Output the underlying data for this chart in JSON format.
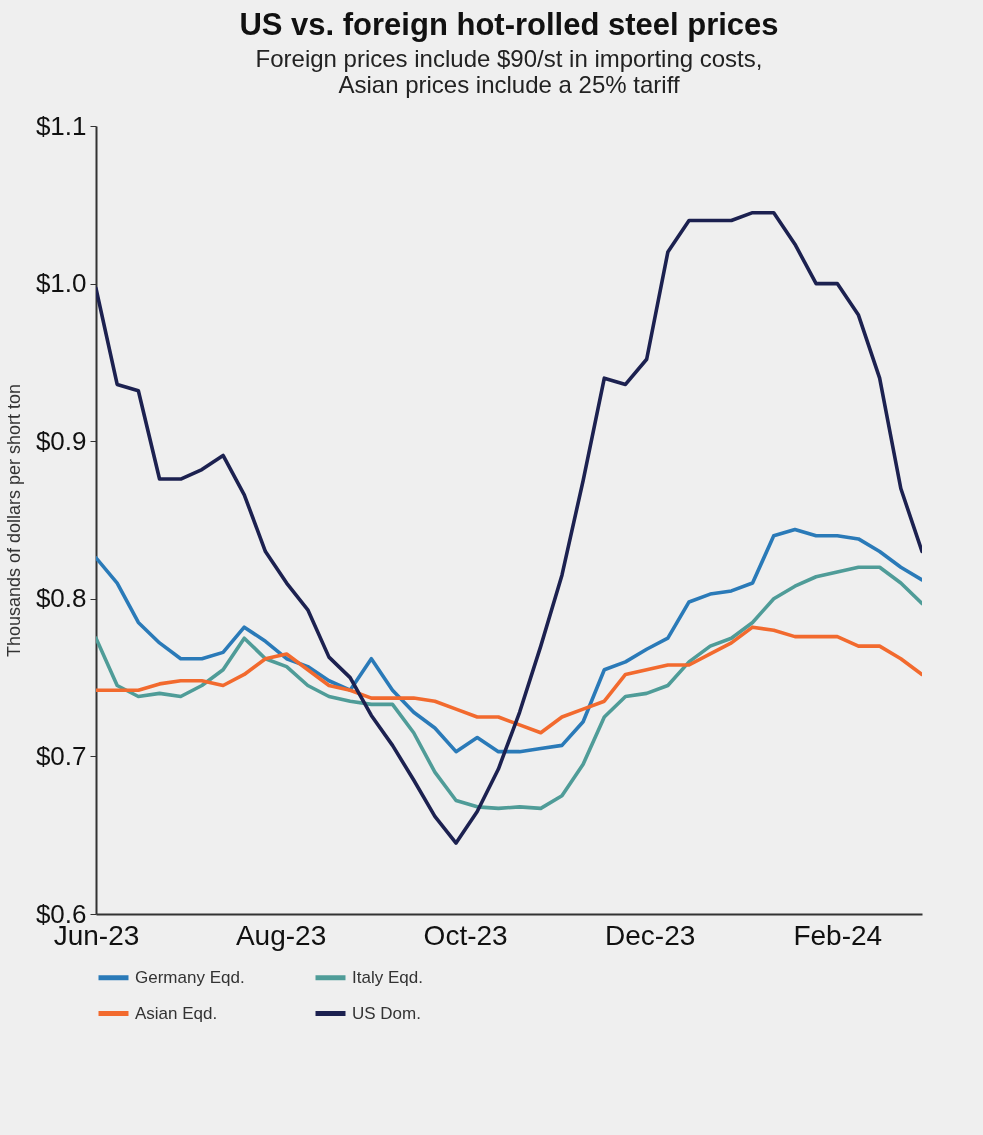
{
  "chart_data": {
    "type": "line",
    "title": "US vs. foreign hot-rolled steel prices",
    "subtitle": "Foreign prices include $90/st in importing costs, Asian prices include a 25% tariff",
    "ylabel": "Thousands of dollars per short ton",
    "x": [
      "2023-06-01",
      "2023-06-08",
      "2023-06-15",
      "2023-06-22",
      "2023-06-29",
      "2023-07-06",
      "2023-07-13",
      "2023-07-20",
      "2023-07-27",
      "2023-08-03",
      "2023-08-10",
      "2023-08-17",
      "2023-08-24",
      "2023-08-31",
      "2023-09-07",
      "2023-09-14",
      "2023-09-21",
      "2023-09-28",
      "2023-10-05",
      "2023-10-12",
      "2023-10-19",
      "2023-10-26",
      "2023-11-02",
      "2023-11-09",
      "2023-11-16",
      "2023-11-23",
      "2023-11-30",
      "2023-12-07",
      "2023-12-14",
      "2023-12-21",
      "2023-12-28",
      "2024-01-04",
      "2024-01-11",
      "2024-01-18",
      "2024-01-25",
      "2024-02-01",
      "2024-02-08",
      "2024-02-15",
      "2024-02-22",
      "2024-02-29"
    ],
    "series": [
      {
        "name": "Germany Eqd.",
        "color": "#2a7ab8",
        "values": [
          0.826,
          0.81,
          0.785,
          0.772,
          0.762,
          0.762,
          0.766,
          0.782,
          0.773,
          0.762,
          0.757,
          0.748,
          0.742,
          0.762,
          0.742,
          0.728,
          0.718,
          0.703,
          0.712,
          0.703,
          0.703,
          0.705,
          0.707,
          0.722,
          0.755,
          0.76,
          0.768,
          0.775,
          0.798,
          0.803,
          0.805,
          0.81,
          0.84,
          0.844,
          0.84,
          0.84,
          0.838,
          0.83,
          0.82,
          0.812
        ]
      },
      {
        "name": "Italy Eqd.",
        "color": "#4f9c98",
        "values": [
          0.775,
          0.745,
          0.738,
          0.74,
          0.738,
          0.745,
          0.755,
          0.775,
          0.762,
          0.757,
          0.745,
          0.738,
          0.735,
          0.733,
          0.733,
          0.715,
          0.69,
          0.672,
          0.668,
          0.667,
          0.668,
          0.667,
          0.675,
          0.695,
          0.725,
          0.738,
          0.74,
          0.745,
          0.76,
          0.77,
          0.775,
          0.785,
          0.8,
          0.808,
          0.814,
          0.817,
          0.82,
          0.82,
          0.81,
          0.797
        ]
      },
      {
        "name": "Asian Eqd.",
        "color": "#f26a2e",
        "values": [
          0.742,
          0.742,
          0.742,
          0.746,
          0.748,
          0.748,
          0.745,
          0.752,
          0.762,
          0.765,
          0.755,
          0.745,
          0.742,
          0.737,
          0.737,
          0.737,
          0.735,
          0.73,
          0.725,
          0.725,
          0.72,
          0.715,
          0.725,
          0.73,
          0.735,
          0.752,
          0.755,
          0.758,
          0.758,
          0.765,
          0.772,
          0.782,
          0.78,
          0.776,
          0.776,
          0.776,
          0.77,
          0.77,
          0.762,
          0.752
        ]
      },
      {
        "name": "US Dom.",
        "color": "#1c2150",
        "values": [
          0.997,
          0.936,
          0.932,
          0.876,
          0.876,
          0.882,
          0.891,
          0.866,
          0.83,
          0.81,
          0.793,
          0.763,
          0.75,
          0.726,
          0.707,
          0.685,
          0.662,
          0.645,
          0.665,
          0.692,
          0.728,
          0.77,
          0.815,
          0.875,
          0.94,
          0.936,
          0.952,
          1.02,
          1.04,
          1.04,
          1.04,
          1.045,
          1.045,
          1.025,
          1.0,
          1.0,
          0.98,
          0.94,
          0.87,
          0.83
        ]
      }
    ],
    "xlim": [
      "2023-06-01",
      "2024-02-29"
    ],
    "xticks": [
      {
        "value": "2023-06-01",
        "label": "Jun-23"
      },
      {
        "value": "2023-08-01",
        "label": "Aug-23"
      },
      {
        "value": "2023-10-01",
        "label": "Oct-23"
      },
      {
        "value": "2023-12-01",
        "label": "Dec-23"
      },
      {
        "value": "2024-02-01",
        "label": "Feb-24"
      }
    ],
    "ylim": [
      0.6,
      1.1
    ],
    "yticks": [
      {
        "value": 0.6,
        "label": "$0.6"
      },
      {
        "value": 0.7,
        "label": "$0.7"
      },
      {
        "value": 0.8,
        "label": "$0.8"
      },
      {
        "value": 0.9,
        "label": "$0.9"
      },
      {
        "value": 1.0,
        "label": "$1.0"
      },
      {
        "value": 1.1,
        "label": "$1.1"
      }
    ],
    "grid": false,
    "legend": "bottom",
    "marker": "none",
    "line_style": "solid"
  }
}
